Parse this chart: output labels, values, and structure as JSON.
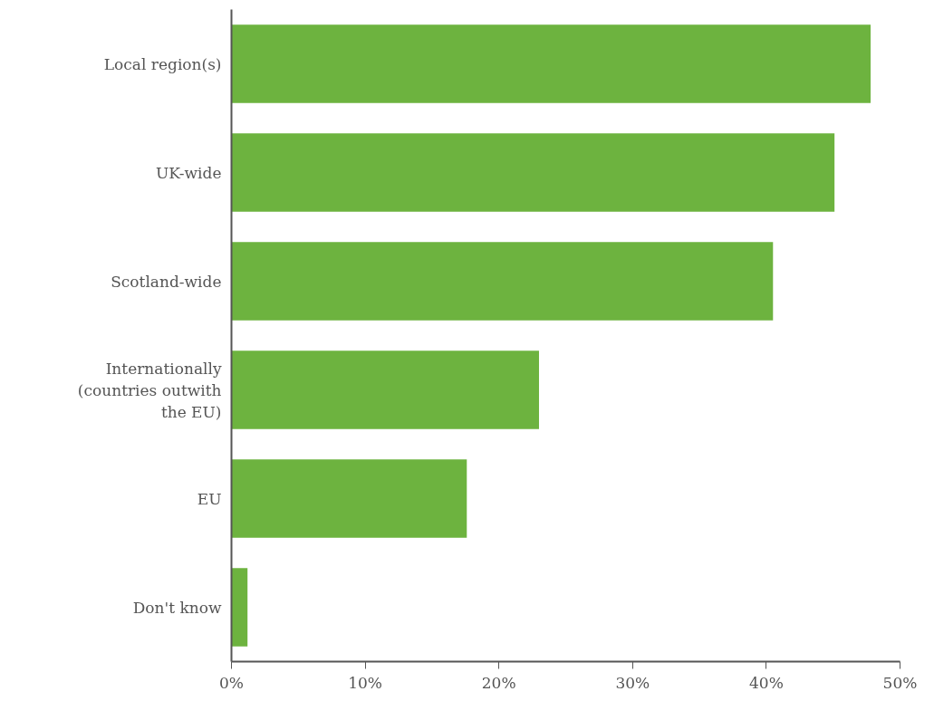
{
  "chart_data": {
    "type": "bar",
    "orientation": "horizontal",
    "categories": [
      "Local region(s)",
      "UK-wide",
      "Scotland-wide",
      "Internationally (countries outwith the EU)",
      "EU",
      "Don't know"
    ],
    "values": [
      47.8,
      45.1,
      40.5,
      23.0,
      17.6,
      1.2
    ],
    "color": "#6db33f",
    "xlim": [
      0,
      50
    ],
    "xticks": [
      {
        "value": 0,
        "label": "0%"
      },
      {
        "value": 10,
        "label": "10%"
      },
      {
        "value": 20,
        "label": "20%"
      },
      {
        "value": 30,
        "label": "30%"
      },
      {
        "value": 40,
        "label": "40%"
      },
      {
        "value": 50,
        "label": "50%"
      }
    ],
    "grid": false
  }
}
